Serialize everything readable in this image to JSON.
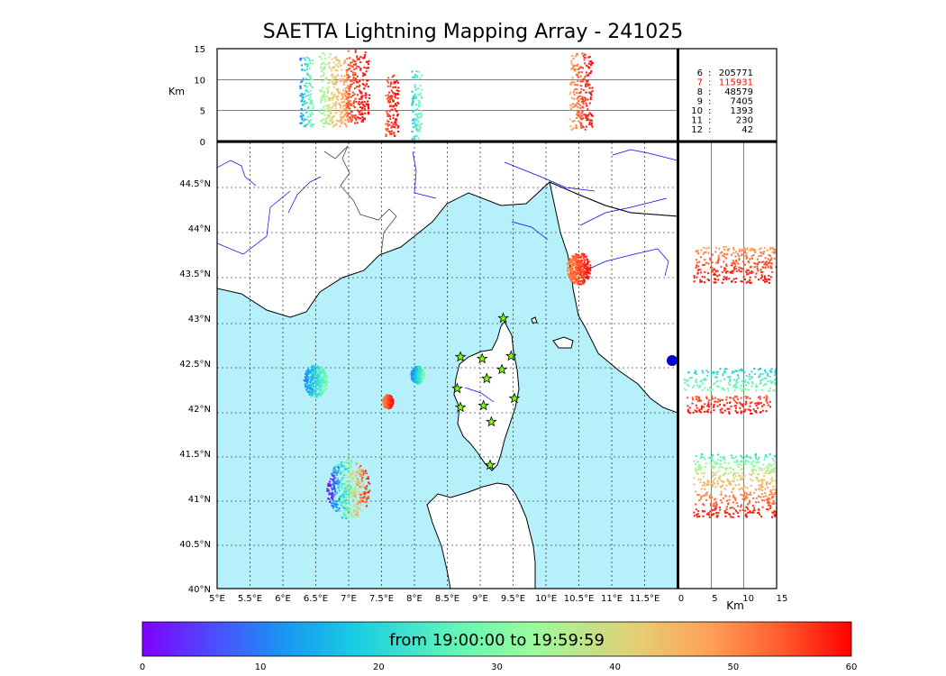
{
  "title": "SAETTA Lightning Mapping Array - 241025",
  "chart_data": [
    {
      "panel": "altitude-vs-longitude",
      "type": "scatter",
      "ylabel": "Km",
      "ylim": [
        0,
        15
      ],
      "yticks": [
        "15",
        "10",
        "5",
        "0"
      ],
      "xlim": [
        5.0,
        12.0
      ],
      "clusters": [
        {
          "lon": [
            6.25,
            6.45
          ],
          "alt": [
            2.5,
            14.0
          ],
          "color_minutes": "0-30"
        },
        {
          "lon": [
            6.55,
            7.0
          ],
          "alt": [
            2.5,
            14.5
          ],
          "color_minutes": "20-50"
        },
        {
          "lon": [
            6.95,
            7.3
          ],
          "alt": [
            3.0,
            15.0
          ],
          "color_minutes": "50-60"
        },
        {
          "lon": [
            7.55,
            7.75
          ],
          "alt": [
            1.0,
            11.0
          ],
          "color_minutes": "50-60"
        },
        {
          "lon": [
            7.95,
            8.1
          ],
          "alt": [
            0.5,
            12.0
          ],
          "color_minutes": "10-30"
        },
        {
          "lon": [
            10.35,
            10.7
          ],
          "alt": [
            2.0,
            14.5
          ],
          "color_minutes": "40-60"
        }
      ]
    },
    {
      "panel": "plan-view-map",
      "type": "scatter",
      "xlim": [
        5.0,
        12.0
      ],
      "ylim": [
        40.0,
        44.95
      ],
      "xticks": [
        "5°E",
        "5.5°E",
        "6°E",
        "6.5°E",
        "7°E",
        "7.5°E",
        "8°E",
        "8.5°E",
        "9°E",
        "9.5°E",
        "10°E",
        "10.5°E",
        "11°E",
        "11.5°E"
      ],
      "yticks": [
        "44.5°N",
        "44°N",
        "43.5°N",
        "43°N",
        "42.5°N",
        "42°N",
        "41.5°N",
        "41°N",
        "40.5°N",
        "40°N"
      ],
      "grid": true,
      "sensors": [
        [
          9.35,
          43.0
        ],
        [
          8.7,
          42.57
        ],
        [
          9.03,
          42.55
        ],
        [
          9.47,
          42.58
        ],
        [
          9.33,
          42.43
        ],
        [
          9.1,
          42.33
        ],
        [
          8.65,
          42.22
        ],
        [
          8.7,
          42.01
        ],
        [
          9.05,
          42.03
        ],
        [
          9.52,
          42.11
        ],
        [
          9.17,
          41.85
        ],
        [
          9.15,
          41.37
        ]
      ],
      "clusters": [
        {
          "lon": 6.5,
          "lat": 42.3,
          "r_deg": 0.18,
          "color_minutes": "10-30"
        },
        {
          "lon": 8.05,
          "lat": 42.37,
          "r_deg": 0.1,
          "color_minutes": "10-30"
        },
        {
          "lon": 7.6,
          "lat": 42.07,
          "r_deg": 0.08,
          "color_minutes": "50-60"
        },
        {
          "lon": 7.0,
          "lat": 41.1,
          "r_deg": 0.33,
          "color_minutes": "0-60"
        },
        {
          "lon": 10.5,
          "lat": 43.55,
          "r_deg": 0.18,
          "color_minutes": "50-60"
        }
      ]
    },
    {
      "panel": "latitude-vs-altitude",
      "type": "scatter",
      "xlabel": "Km",
      "xlim": [
        0,
        15
      ],
      "xticks": [
        "0",
        "5",
        "10",
        "15"
      ],
      "clusters": [
        {
          "lat": [
            43.4,
            43.8
          ],
          "alt": [
            2.0,
            15.0
          ],
          "color_minutes": "40-60"
        },
        {
          "lat": [
            42.2,
            42.45
          ],
          "alt": [
            0.5,
            15.0
          ],
          "color_minutes": "10-30"
        },
        {
          "lat": [
            41.95,
            42.15
          ],
          "alt": [
            1.0,
            14.0
          ],
          "color_minutes": "50-60"
        },
        {
          "lat": [
            40.8,
            41.5
          ],
          "alt": [
            2.0,
            15.0
          ],
          "color_minutes": "0-60"
        }
      ]
    }
  ],
  "stats": [
    {
      "label": "6",
      "count": "205771",
      "highlight": false
    },
    {
      "label": "7",
      "count": "115931",
      "highlight": true
    },
    {
      "label": "8",
      "count": "48579",
      "highlight": false
    },
    {
      "label": "9",
      "count": "7405",
      "highlight": false
    },
    {
      "label": "10",
      "count": "1393",
      "highlight": false
    },
    {
      "label": "11",
      "count": "230",
      "highlight": false
    },
    {
      "label": "12",
      "count": "42",
      "highlight": false
    }
  ],
  "colorbar": {
    "label": "from 19:00:00 to 19:59:59",
    "min": 0,
    "max": 60,
    "ticks": [
      "0",
      "10",
      "20",
      "30",
      "40",
      "50",
      "60"
    ]
  },
  "colors": {
    "sea": "#b6f0fb",
    "land": "#ffffff",
    "coast": "#000000",
    "rivers": "#0000ff",
    "borders": "#444444",
    "highlight": "#ff0000",
    "sensor": "#7fff00"
  }
}
